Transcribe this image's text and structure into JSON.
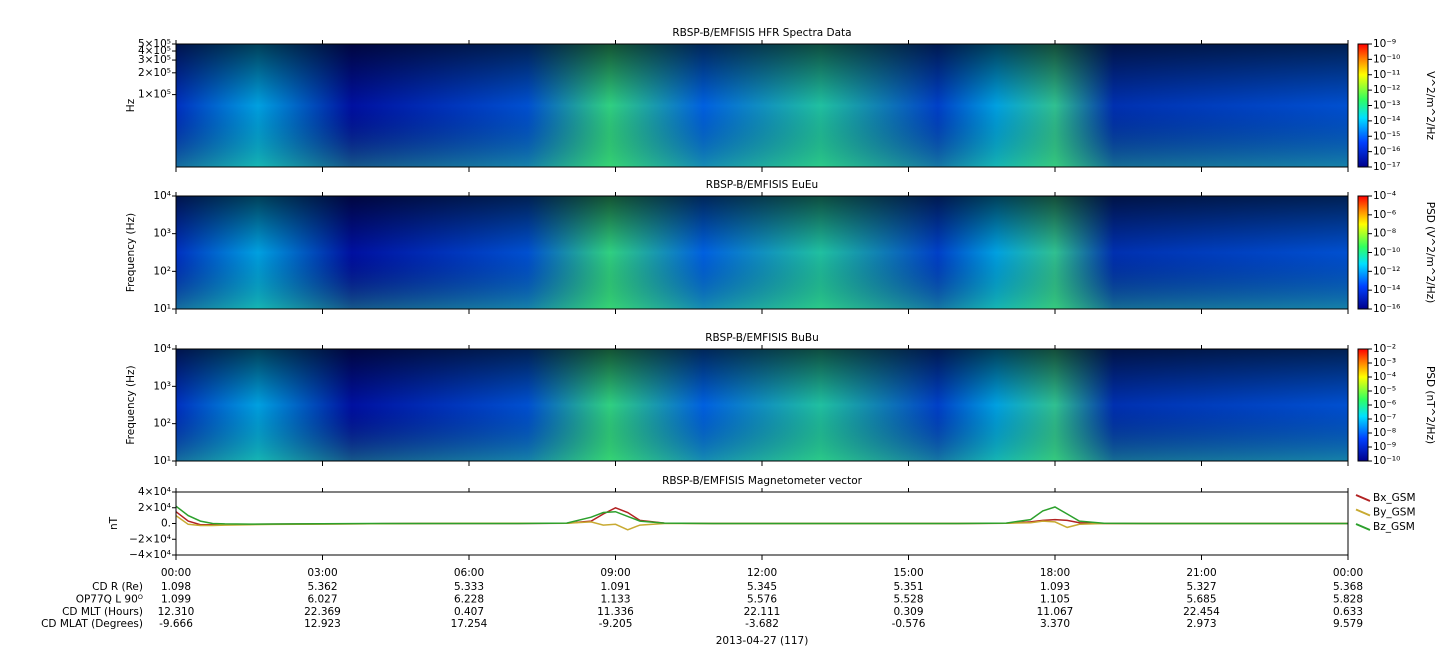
{
  "chart_data": [
    {
      "type": "spectrogram",
      "title": "RBSP-B/EMFISIS  HFR Spectra Data",
      "ylabel": "Hz",
      "log_y": true,
      "ylim": [
        10000,
        500000
      ],
      "yticks": [
        {
          "value": 100000,
          "label": "1×10⁵"
        },
        {
          "value": 200000,
          "label": "2×10⁵"
        },
        {
          "value": 300000,
          "label": "3×10⁵"
        },
        {
          "value": 400000,
          "label": "4×10⁵"
        },
        {
          "value": 500000,
          "label": "5×10⁵"
        }
      ],
      "colorbar": {
        "label": "V^2/m^2/Hz",
        "lim": [
          1e-17,
          1e-09
        ],
        "ticks": [
          {
            "value": 1e-09,
            "label": "10⁻⁹"
          },
          {
            "value": 1e-10,
            "label": "10⁻¹⁰"
          },
          {
            "value": 1e-11,
            "label": "10⁻¹¹"
          },
          {
            "value": 1e-12,
            "label": "10⁻¹²"
          },
          {
            "value": 1e-13,
            "label": "10⁻¹³"
          },
          {
            "value": 1e-14,
            "label": "10⁻¹⁴"
          },
          {
            "value": 1e-15,
            "label": "10⁻¹⁵"
          },
          {
            "value": 1e-16,
            "label": "10⁻¹⁶"
          },
          {
            "value": 1e-17,
            "label": "10⁻¹⁷"
          }
        ]
      }
    },
    {
      "type": "spectrogram",
      "title": "RBSP-B/EMFISIS  EuEu",
      "ylabel": "Frequency (Hz)",
      "log_y": true,
      "ylim": [
        10,
        10000
      ],
      "yticks": [
        {
          "value": 10,
          "label": "10¹"
        },
        {
          "value": 100,
          "label": "10²"
        },
        {
          "value": 1000,
          "label": "10³"
        },
        {
          "value": 10000,
          "label": "10⁴"
        }
      ],
      "colorbar": {
        "label": "PSD (V^2/m^2/Hz)",
        "lim": [
          1e-16,
          0.0001
        ],
        "ticks": [
          {
            "value": 0.0001,
            "label": "10⁻⁴"
          },
          {
            "value": 1e-06,
            "label": "10⁻⁶"
          },
          {
            "value": 1e-08,
            "label": "10⁻⁸"
          },
          {
            "value": 1e-10,
            "label": "10⁻¹⁰"
          },
          {
            "value": 1e-12,
            "label": "10⁻¹²"
          },
          {
            "value": 1e-14,
            "label": "10⁻¹⁴"
          },
          {
            "value": 1e-16,
            "label": "10⁻¹⁶"
          }
        ]
      }
    },
    {
      "type": "spectrogram",
      "title": "RBSP-B/EMFISIS  BuBu",
      "ylabel": "Frequency (Hz)",
      "log_y": true,
      "ylim": [
        10,
        10000
      ],
      "yticks": [
        {
          "value": 10,
          "label": "10¹"
        },
        {
          "value": 100,
          "label": "10²"
        },
        {
          "value": 1000,
          "label": "10³"
        },
        {
          "value": 10000,
          "label": "10⁴"
        }
      ],
      "colorbar": {
        "label": "PSD (nT^2/Hz)",
        "lim": [
          1e-10,
          0.01
        ],
        "ticks": [
          {
            "value": 0.01,
            "label": "10⁻²"
          },
          {
            "value": 0.001,
            "label": "10⁻³"
          },
          {
            "value": 0.0001,
            "label": "10⁻⁴"
          },
          {
            "value": 1e-05,
            "label": "10⁻⁵"
          },
          {
            "value": 1e-06,
            "label": "10⁻⁶"
          },
          {
            "value": 1e-07,
            "label": "10⁻⁷"
          },
          {
            "value": 1e-08,
            "label": "10⁻⁸"
          },
          {
            "value": 1e-09,
            "label": "10⁻⁹"
          },
          {
            "value": 1e-10,
            "label": "10⁻¹⁰"
          }
        ]
      }
    },
    {
      "type": "line",
      "title": "RBSP-B/EMFISIS  Magnetometer vector",
      "ylabel": "nT",
      "ylim": [
        -40000,
        40000
      ],
      "yticks": [
        {
          "value": -40000,
          "label": "−4×10⁴"
        },
        {
          "value": -20000,
          "label": "−2×10⁴"
        },
        {
          "value": 0,
          "label": "0."
        },
        {
          "value": 20000,
          "label": "2×10⁴"
        },
        {
          "value": 40000,
          "label": "4×10⁴"
        }
      ],
      "xlim": [
        0,
        24
      ],
      "xticks": [
        {
          "value": 0,
          "label": "00:00"
        },
        {
          "value": 3,
          "label": "03:00"
        },
        {
          "value": 6,
          "label": "06:00"
        },
        {
          "value": 9,
          "label": "09:00"
        },
        {
          "value": 12,
          "label": "12:00"
        },
        {
          "value": 15,
          "label": "15:00"
        },
        {
          "value": 18,
          "label": "18:00"
        },
        {
          "value": 21,
          "label": "21:00"
        },
        {
          "value": 24,
          "label": "00:00"
        }
      ],
      "x": [
        0,
        0.25,
        0.5,
        0.75,
        1,
        1.5,
        2,
        3,
        4,
        5,
        6,
        7,
        8,
        8.5,
        8.75,
        9,
        9.25,
        9.5,
        10,
        11,
        12,
        13,
        14,
        15,
        16,
        17,
        17.5,
        17.75,
        18,
        18.25,
        18.5,
        19,
        20,
        21,
        22,
        23,
        24
      ],
      "series": [
        {
          "name": "Bx_GSM",
          "color": "#b22222",
          "values": [
            15000,
            3000,
            -1500,
            -1500,
            -1200,
            -1000,
            -800,
            -500,
            -200,
            0,
            0,
            0,
            300,
            3000,
            12000,
            20000,
            14000,
            4000,
            500,
            0,
            0,
            0,
            0,
            0,
            0,
            300,
            2000,
            4000,
            5000,
            4000,
            1000,
            0,
            0,
            0,
            0,
            0,
            0
          ]
        },
        {
          "name": "By_GSM",
          "color": "#c8aa32",
          "values": [
            10000,
            -1000,
            -2500,
            -2500,
            -2000,
            -1500,
            -1200,
            -800,
            -400,
            0,
            200,
            300,
            400,
            2000,
            -2000,
            -1000,
            -8000,
            -2000,
            0,
            0,
            0,
            0,
            0,
            0,
            0,
            300,
            1000,
            3000,
            2000,
            -5000,
            -1000,
            0,
            0,
            0,
            0,
            0,
            0
          ]
        },
        {
          "name": "Bz_GSM",
          "color": "#2ca02c",
          "values": [
            22000,
            10000,
            3000,
            0,
            -500,
            -800,
            -600,
            -300,
            0,
            0,
            0,
            0,
            500,
            8000,
            14000,
            15000,
            9000,
            3000,
            500,
            0,
            0,
            0,
            0,
            0,
            0,
            500,
            5000,
            16000,
            21000,
            12000,
            3000,
            200,
            0,
            0,
            0,
            0,
            0
          ]
        }
      ]
    }
  ],
  "ephemeris": {
    "rows": [
      {
        "label": "CD R (Re)",
        "values": [
          "1.098",
          "5.362",
          "5.333",
          "1.091",
          "5.345",
          "5.351",
          "1.093",
          "5.327",
          "5.368"
        ]
      },
      {
        "label": "OP77Q L 90ᴼ",
        "values": [
          "1.099",
          "6.027",
          "6.228",
          "1.133",
          "5.576",
          "5.528",
          "1.105",
          "5.685",
          "5.828"
        ]
      },
      {
        "label": "CD MLT (Hours)",
        "values": [
          "12.310",
          "22.369",
          "0.407",
          "11.336",
          "22.111",
          "0.309",
          "11.067",
          "22.454",
          "0.633"
        ]
      },
      {
        "label": "CD MLAT (Degrees)",
        "values": [
          "-9.666",
          "12.923",
          "17.254",
          "-9.205",
          "-3.682",
          "-0.576",
          "3.370",
          "2.973",
          "9.579"
        ]
      }
    ],
    "date": "2013-04-27 (117)"
  }
}
